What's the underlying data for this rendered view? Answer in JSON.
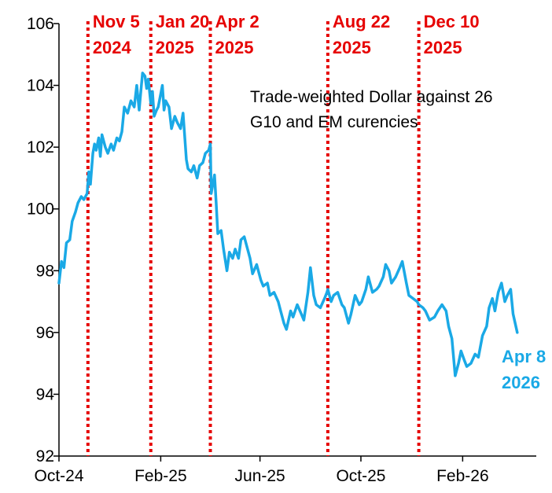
{
  "chart_data": {
    "type": "line",
    "title": "",
    "xlabel": "",
    "ylabel": "",
    "ylim": [
      92,
      106
    ],
    "y_ticks": [
      "92",
      "94",
      "96",
      "98",
      "100",
      "102",
      "104",
      "106"
    ],
    "x_ticks": [
      {
        "label": "Oct-24",
        "date": "2024-10-01"
      },
      {
        "label": "Feb-25",
        "date": "2025-02-01"
      },
      {
        "label": "Jun-25",
        "date": "2025-06-01"
      },
      {
        "label": "Oct-25",
        "date": "2025-10-01"
      },
      {
        "label": "Feb-26",
        "date": "2026-02-01"
      }
    ],
    "xlim": [
      "2024-10-01",
      "2026-05-01"
    ],
    "grid": false,
    "line_color": "#1aa9e6",
    "event_color": "#e60000",
    "annotation": {
      "lines": [
        "Trade-weighted Dollar against 26",
        "G10 and EM curencies"
      ]
    },
    "end_label": {
      "lines": [
        "Apr 8",
        "2026"
      ]
    },
    "events": [
      {
        "date": "2024-11-05",
        "label1": "Nov 5",
        "label2": "2024"
      },
      {
        "date": "2025-01-20",
        "label1": "Jan 20",
        "label2": "2025"
      },
      {
        "date": "2025-04-02",
        "label1": "Apr 2",
        "label2": "2025"
      },
      {
        "date": "2025-08-22",
        "label1": "Aug 22",
        "label2": "2025"
      },
      {
        "date": "2025-12-10",
        "label1": "Dec 10",
        "label2": "2025"
      }
    ],
    "series": [
      {
        "color": "#1aa9e6",
        "points": [
          [
            "2024-10-01",
            97.6
          ],
          [
            "2024-10-04",
            98.3
          ],
          [
            "2024-10-07",
            98.1
          ],
          [
            "2024-10-10",
            98.9
          ],
          [
            "2024-10-14",
            99.0
          ],
          [
            "2024-10-17",
            99.6
          ],
          [
            "2024-10-21",
            99.9
          ],
          [
            "2024-10-24",
            100.2
          ],
          [
            "2024-10-28",
            100.4
          ],
          [
            "2024-10-31",
            100.3
          ],
          [
            "2024-11-04",
            100.5
          ],
          [
            "2024-11-06",
            101.2
          ],
          [
            "2024-11-08",
            100.8
          ],
          [
            "2024-11-11",
            101.8
          ],
          [
            "2024-11-13",
            102.1
          ],
          [
            "2024-11-15",
            101.9
          ],
          [
            "2024-11-18",
            102.3
          ],
          [
            "2024-11-20",
            101.7
          ],
          [
            "2024-11-22",
            102.4
          ],
          [
            "2024-11-26",
            102.0
          ],
          [
            "2024-11-29",
            101.8
          ],
          [
            "2024-12-03",
            102.1
          ],
          [
            "2024-12-06",
            101.9
          ],
          [
            "2024-12-10",
            102.3
          ],
          [
            "2024-12-13",
            102.2
          ],
          [
            "2024-12-16",
            102.5
          ],
          [
            "2024-12-19",
            103.3
          ],
          [
            "2024-12-23",
            103.1
          ],
          [
            "2024-12-27",
            103.5
          ],
          [
            "2024-12-31",
            103.3
          ],
          [
            "2025-01-03",
            104.0
          ],
          [
            "2025-01-06",
            103.2
          ],
          [
            "2025-01-08",
            103.8
          ],
          [
            "2025-01-10",
            104.4
          ],
          [
            "2025-01-13",
            104.3
          ],
          [
            "2025-01-15",
            103.9
          ],
          [
            "2025-01-17",
            104.2
          ],
          [
            "2025-01-20",
            103.4
          ],
          [
            "2025-01-22",
            103.8
          ],
          [
            "2025-01-24",
            103.0
          ],
          [
            "2025-01-27",
            103.2
          ],
          [
            "2025-01-29",
            103.3
          ],
          [
            "2025-02-03",
            104.0
          ],
          [
            "2025-02-05",
            103.2
          ],
          [
            "2025-02-07",
            103.5
          ],
          [
            "2025-02-11",
            103.3
          ],
          [
            "2025-02-14",
            102.6
          ],
          [
            "2025-02-18",
            103.0
          ],
          [
            "2025-02-21",
            102.8
          ],
          [
            "2025-02-25",
            102.6
          ],
          [
            "2025-02-28",
            103.1
          ],
          [
            "2025-03-04",
            101.6
          ],
          [
            "2025-03-06",
            101.3
          ],
          [
            "2025-03-10",
            101.2
          ],
          [
            "2025-03-13",
            101.4
          ],
          [
            "2025-03-17",
            101.0
          ],
          [
            "2025-03-20",
            101.4
          ],
          [
            "2025-03-24",
            101.5
          ],
          [
            "2025-03-27",
            101.8
          ],
          [
            "2025-03-31",
            101.9
          ],
          [
            "2025-04-02",
            102.1
          ],
          [
            "2025-04-03",
            100.5
          ],
          [
            "2025-04-07",
            101.1
          ],
          [
            "2025-04-09",
            100.2
          ],
          [
            "2025-04-11",
            99.2
          ],
          [
            "2025-04-15",
            99.3
          ],
          [
            "2025-04-18",
            98.7
          ],
          [
            "2025-04-22",
            98.0
          ],
          [
            "2025-04-25",
            98.6
          ],
          [
            "2025-04-29",
            98.4
          ],
          [
            "2025-05-02",
            98.7
          ],
          [
            "2025-05-06",
            98.4
          ],
          [
            "2025-05-09",
            99.0
          ],
          [
            "2025-05-13",
            99.1
          ],
          [
            "2025-05-16",
            98.8
          ],
          [
            "2025-05-20",
            98.4
          ],
          [
            "2025-05-23",
            97.9
          ],
          [
            "2025-05-28",
            98.2
          ],
          [
            "2025-06-02",
            97.7
          ],
          [
            "2025-06-05",
            97.5
          ],
          [
            "2025-06-10",
            97.6
          ],
          [
            "2025-06-13",
            97.2
          ],
          [
            "2025-06-18",
            97.3
          ],
          [
            "2025-06-23",
            97.0
          ],
          [
            "2025-06-26",
            96.7
          ],
          [
            "2025-06-30",
            96.3
          ],
          [
            "2025-07-03",
            96.1
          ],
          [
            "2025-07-08",
            96.7
          ],
          [
            "2025-07-11",
            96.5
          ],
          [
            "2025-07-16",
            96.9
          ],
          [
            "2025-07-21",
            96.6
          ],
          [
            "2025-07-24",
            96.4
          ],
          [
            "2025-07-29",
            97.3
          ],
          [
            "2025-08-01",
            98.1
          ],
          [
            "2025-08-05",
            97.2
          ],
          [
            "2025-08-08",
            96.9
          ],
          [
            "2025-08-13",
            96.8
          ],
          [
            "2025-08-18",
            97.1
          ],
          [
            "2025-08-21",
            97.3
          ],
          [
            "2025-08-22",
            97.4
          ],
          [
            "2025-08-26",
            97.0
          ],
          [
            "2025-08-29",
            97.2
          ],
          [
            "2025-09-03",
            97.3
          ],
          [
            "2025-09-08",
            96.9
          ],
          [
            "2025-09-11",
            96.8
          ],
          [
            "2025-09-16",
            96.3
          ],
          [
            "2025-09-19",
            96.6
          ],
          [
            "2025-09-24",
            97.2
          ],
          [
            "2025-09-29",
            96.9
          ],
          [
            "2025-10-02",
            97.0
          ],
          [
            "2025-10-07",
            97.4
          ],
          [
            "2025-10-10",
            97.8
          ],
          [
            "2025-10-15",
            97.3
          ],
          [
            "2025-10-20",
            97.4
          ],
          [
            "2025-10-23",
            97.5
          ],
          [
            "2025-10-28",
            97.8
          ],
          [
            "2025-10-31",
            98.2
          ],
          [
            "2025-11-04",
            98.0
          ],
          [
            "2025-11-07",
            97.6
          ],
          [
            "2025-11-12",
            97.8
          ],
          [
            "2025-11-17",
            98.1
          ],
          [
            "2025-11-20",
            98.3
          ],
          [
            "2025-11-25",
            97.6
          ],
          [
            "2025-11-28",
            97.2
          ],
          [
            "2025-12-03",
            97.1
          ],
          [
            "2025-12-08",
            97.0
          ],
          [
            "2025-12-10",
            96.9
          ],
          [
            "2025-12-15",
            96.8
          ],
          [
            "2025-12-18",
            96.7
          ],
          [
            "2025-12-23",
            96.4
          ],
          [
            "2025-12-29",
            96.5
          ],
          [
            "2026-01-02",
            96.7
          ],
          [
            "2026-01-07",
            96.9
          ],
          [
            "2026-01-12",
            96.7
          ],
          [
            "2026-01-15",
            96.2
          ],
          [
            "2026-01-19",
            95.8
          ],
          [
            "2026-01-21",
            95.2
          ],
          [
            "2026-01-23",
            94.6
          ],
          [
            "2026-01-27",
            95.0
          ],
          [
            "2026-01-30",
            95.4
          ],
          [
            "2026-02-03",
            95.1
          ],
          [
            "2026-02-06",
            94.9
          ],
          [
            "2026-02-11",
            95.0
          ],
          [
            "2026-02-16",
            95.3
          ],
          [
            "2026-02-20",
            95.2
          ],
          [
            "2026-02-25",
            95.9
          ],
          [
            "2026-03-02",
            96.2
          ],
          [
            "2026-03-05",
            96.8
          ],
          [
            "2026-03-09",
            97.1
          ],
          [
            "2026-03-12",
            96.7
          ],
          [
            "2026-03-16",
            97.3
          ],
          [
            "2026-03-20",
            97.6
          ],
          [
            "2026-03-24",
            97.0
          ],
          [
            "2026-03-27",
            97.2
          ],
          [
            "2026-03-31",
            97.4
          ],
          [
            "2026-04-03",
            96.6
          ],
          [
            "2026-04-08",
            96.0
          ]
        ]
      }
    ]
  }
}
